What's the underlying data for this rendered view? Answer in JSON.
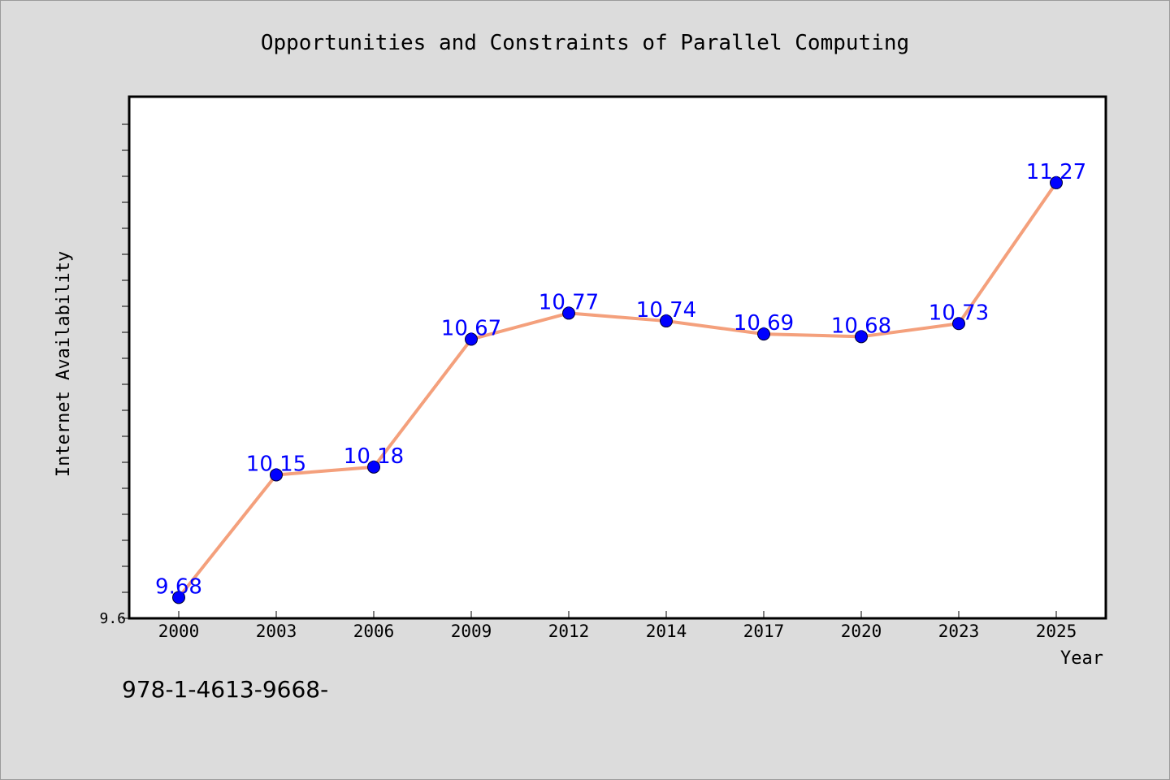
{
  "chart_data": {
    "type": "line",
    "title": "Opportunities and Constraints of Parallel Computing",
    "xlabel": "Year",
    "ylabel": "Internet Availability",
    "categories": [
      "2000",
      "2003",
      "2006",
      "2009",
      "2012",
      "2014",
      "2017",
      "2020",
      "2023",
      "2025"
    ],
    "series": [
      {
        "values": [
          9.68,
          10.15,
          10.18,
          10.67,
          10.77,
          10.74,
          10.69,
          10.68,
          10.73,
          11.27
        ],
        "data_labels": [
          "9.68",
          "10.15",
          "10.18",
          "10.67",
          "10.77",
          "10.74",
          "10.69",
          "10.68",
          "10.73",
          "11.27"
        ]
      }
    ],
    "ylim": [
      9.6,
      11.6
    ],
    "y_tick_labels": [
      "9.6"
    ],
    "grid": false,
    "line_color": "#f4a07c",
    "marker_color": "#0000ff",
    "label_color": "#0000ff"
  },
  "footnote": "978-1-4613-9668-"
}
